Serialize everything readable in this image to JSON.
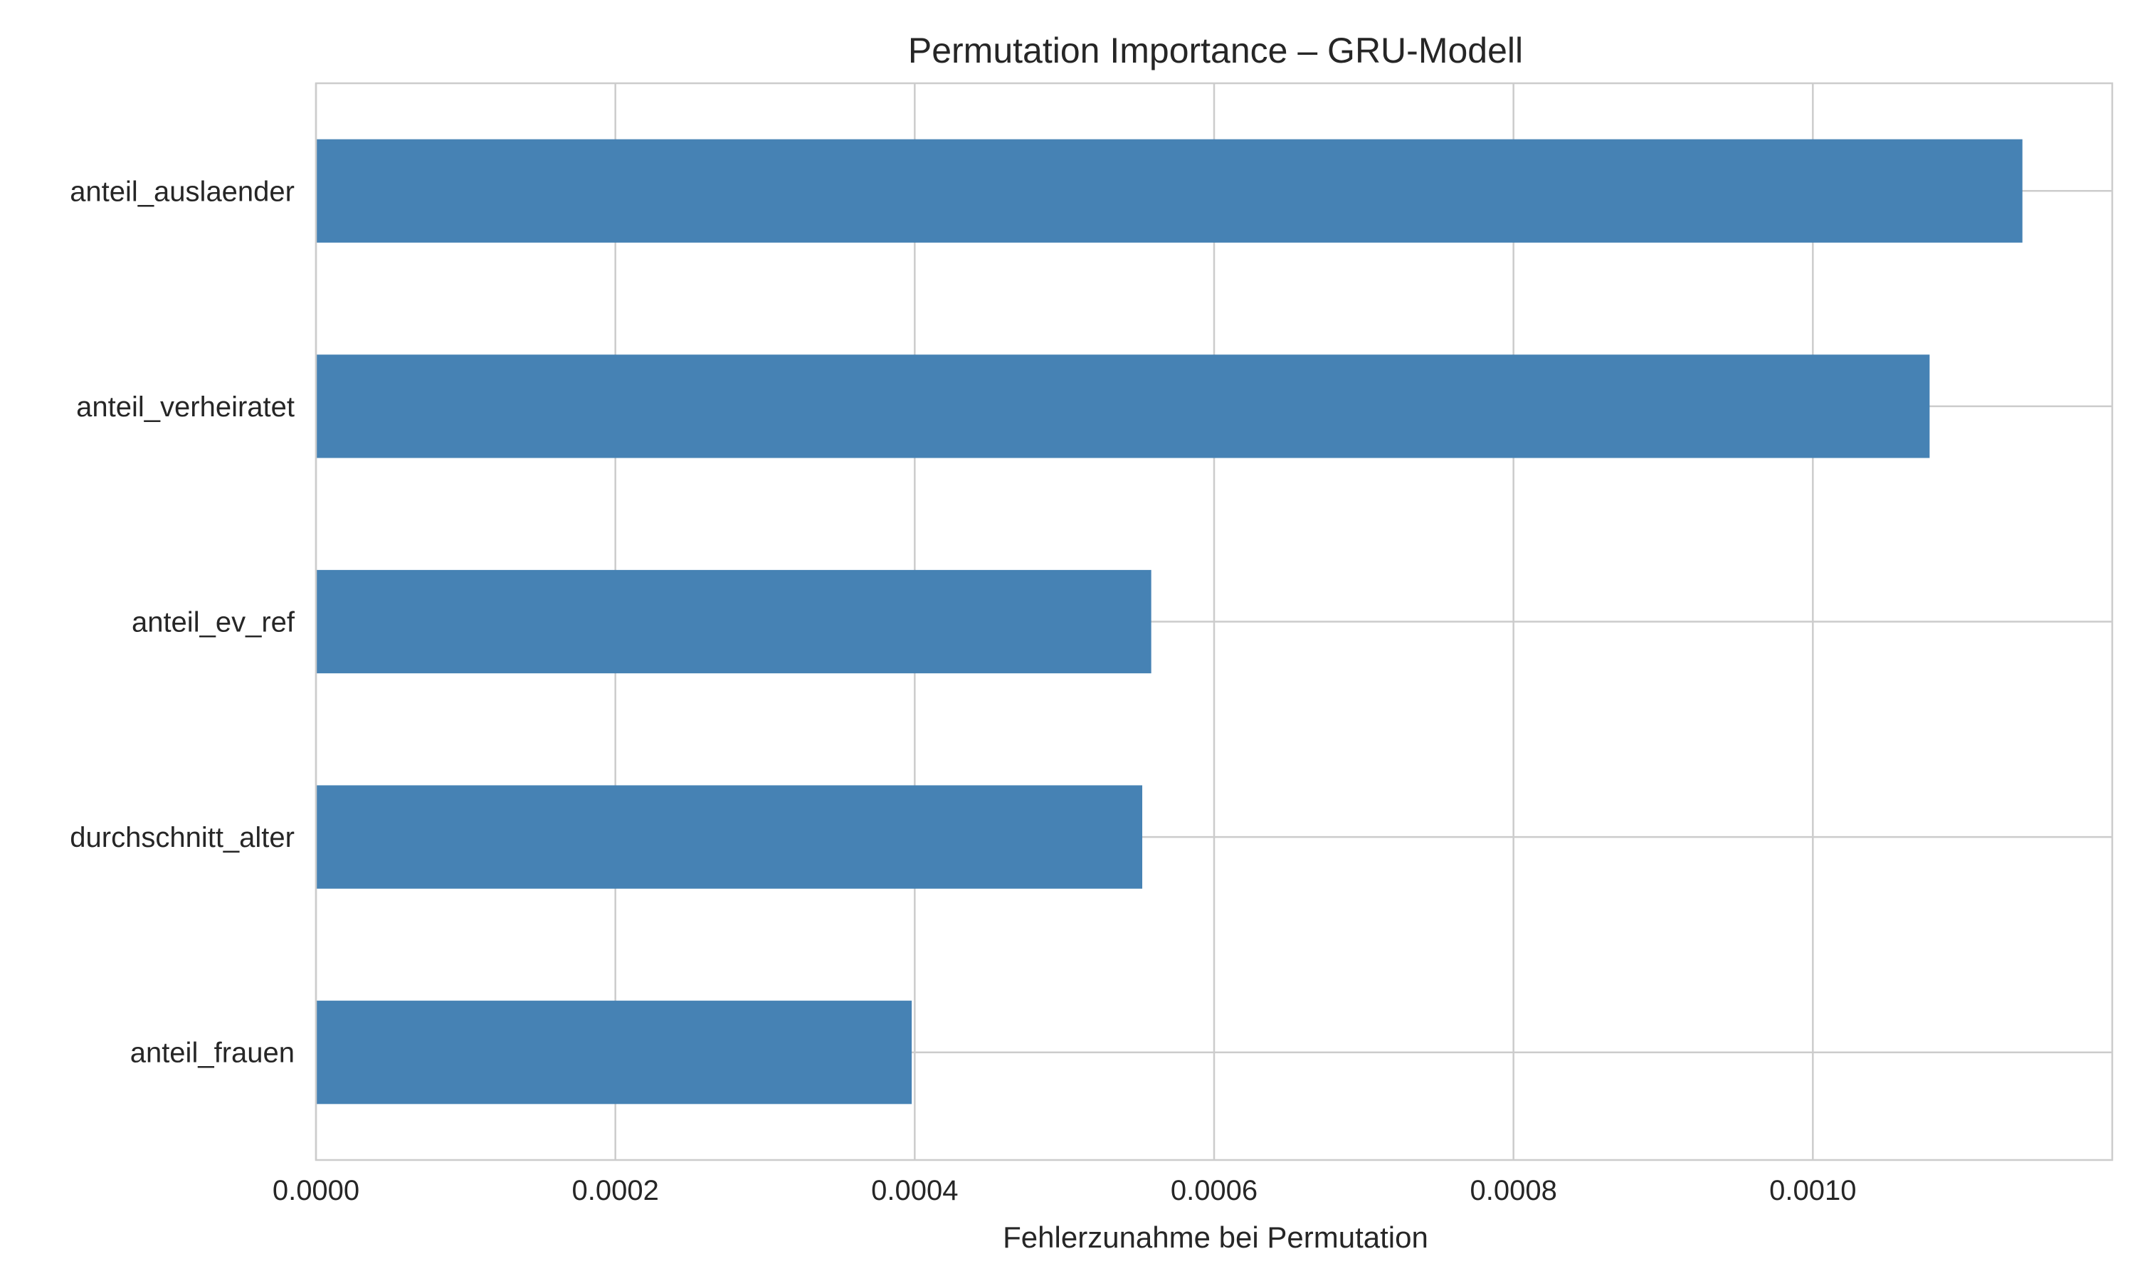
{
  "chart_data": {
    "type": "bar",
    "orientation": "horizontal",
    "title": "Permutation Importance – GRU-Modell",
    "xlabel": "Fehlerzunahme bei Permutation",
    "ylabel": "",
    "xlim": [
      0,
      0.0012
    ],
    "xticks": [
      0.0,
      0.0002,
      0.0004,
      0.0006,
      0.0008,
      0.001
    ],
    "xtick_labels": [
      "0.0000",
      "0.0002",
      "0.0004",
      "0.0006",
      "0.0008",
      "0.0010"
    ],
    "categories": [
      "anteil_auslaender",
      "anteil_verheiratet",
      "anteil_ev_ref",
      "durchschnitt_alter",
      "anteil_frauen"
    ],
    "values": [
      0.00114,
      0.001078,
      0.000558,
      0.000552,
      0.000398
    ],
    "bar_color": "#4682b4",
    "grid": true,
    "grid_color": "#cccccc",
    "legend": "none"
  }
}
